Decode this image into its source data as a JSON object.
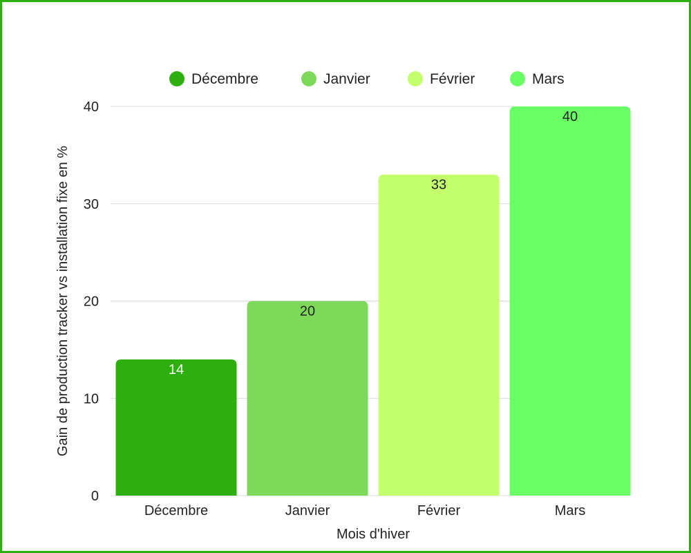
{
  "chart_data": {
    "type": "bar",
    "categories": [
      "Décembre",
      "Janvier",
      "Février",
      "Mars"
    ],
    "values": [
      14,
      20,
      33,
      40
    ],
    "data_labels": [
      "14",
      "20",
      "33",
      "40"
    ],
    "colors": [
      "#2fae0f",
      "#7ed85a",
      "#c4ff6e",
      "#6bff66"
    ],
    "data_label_colors": [
      "#ffffff",
      "#222222",
      "#222222",
      "#222222"
    ],
    "legend": {
      "position": "top",
      "entries": [
        "Décembre",
        "Janvier",
        "Février",
        "Mars"
      ]
    },
    "title": "",
    "xlabel": "Mois d'hiver",
    "ylabel": "Gain de production tracker vs installation fixe en %",
    "ylim": [
      0,
      40
    ],
    "yticks": [
      0,
      10,
      20,
      30,
      40
    ],
    "ytick_labels": [
      "0",
      "10",
      "20",
      "30",
      "40"
    ],
    "grid": true,
    "frame_color": "#2fae0f",
    "grid_color": "#d9d9d9"
  }
}
